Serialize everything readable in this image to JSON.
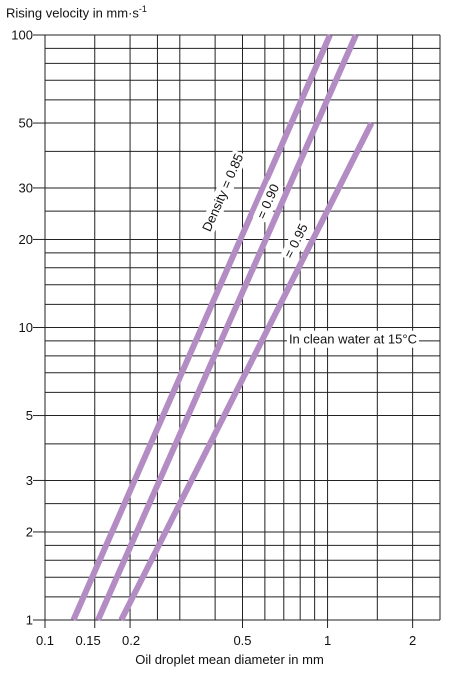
{
  "chart_data": {
    "type": "line",
    "title": "Rising velocity in mm·s",
    "title_superscript": "-1",
    "xlabel": "Oil droplet mean diameter in mm",
    "ylabel": "Rising velocity in mm·s-1",
    "x_scale": "log",
    "y_scale": "log",
    "xlim": [
      0.1,
      2.5
    ],
    "ylim": [
      1,
      100
    ],
    "x_ticks": [
      {
        "value": 0.1,
        "label": "0.1"
      },
      {
        "value": 0.15,
        "label": "0.15"
      },
      {
        "value": 0.2,
        "label": "0.2"
      },
      {
        "value": 0.5,
        "label": "0.5"
      },
      {
        "value": 1,
        "label": "1"
      },
      {
        "value": 2,
        "label": "2"
      }
    ],
    "y_ticks": [
      {
        "value": 1,
        "label": "1"
      },
      {
        "value": 2,
        "label": "2"
      },
      {
        "value": 3,
        "label": "3"
      },
      {
        "value": 5,
        "label": "5"
      },
      {
        "value": 10,
        "label": "10"
      },
      {
        "value": 20,
        "label": "20"
      },
      {
        "value": 30,
        "label": "30"
      },
      {
        "value": 50,
        "label": "50"
      },
      {
        "value": 100,
        "label": "100"
      }
    ],
    "x_grid": [
      0.1,
      0.15,
      0.2,
      0.25,
      0.3,
      0.4,
      0.5,
      0.6,
      0.7,
      0.8,
      0.9,
      1,
      1.5,
      2,
      2.5
    ],
    "y_grid": [
      1,
      1.2,
      1.4,
      1.6,
      1.8,
      2,
      2.5,
      3,
      4,
      5,
      6,
      7,
      8,
      9,
      10,
      12,
      14,
      16,
      18,
      20,
      25,
      30,
      40,
      50,
      60,
      70,
      80,
      90,
      100
    ],
    "grid": true,
    "line_color": "#b48cc4",
    "series": [
      {
        "name": "Density = 0.85",
        "x": [
          0.126,
          1.02
        ],
        "y": [
          1,
          100
        ]
      },
      {
        "name": "= 0.90",
        "x": [
          0.154,
          1.26
        ],
        "y": [
          1,
          100
        ]
      },
      {
        "name": "= 0.95",
        "x": [
          0.186,
          1.43
        ],
        "y": [
          1,
          50
        ]
      }
    ],
    "annotations": [
      {
        "text": "In clean water at 15°C",
        "x": 0.73,
        "y": 8.8
      }
    ]
  }
}
